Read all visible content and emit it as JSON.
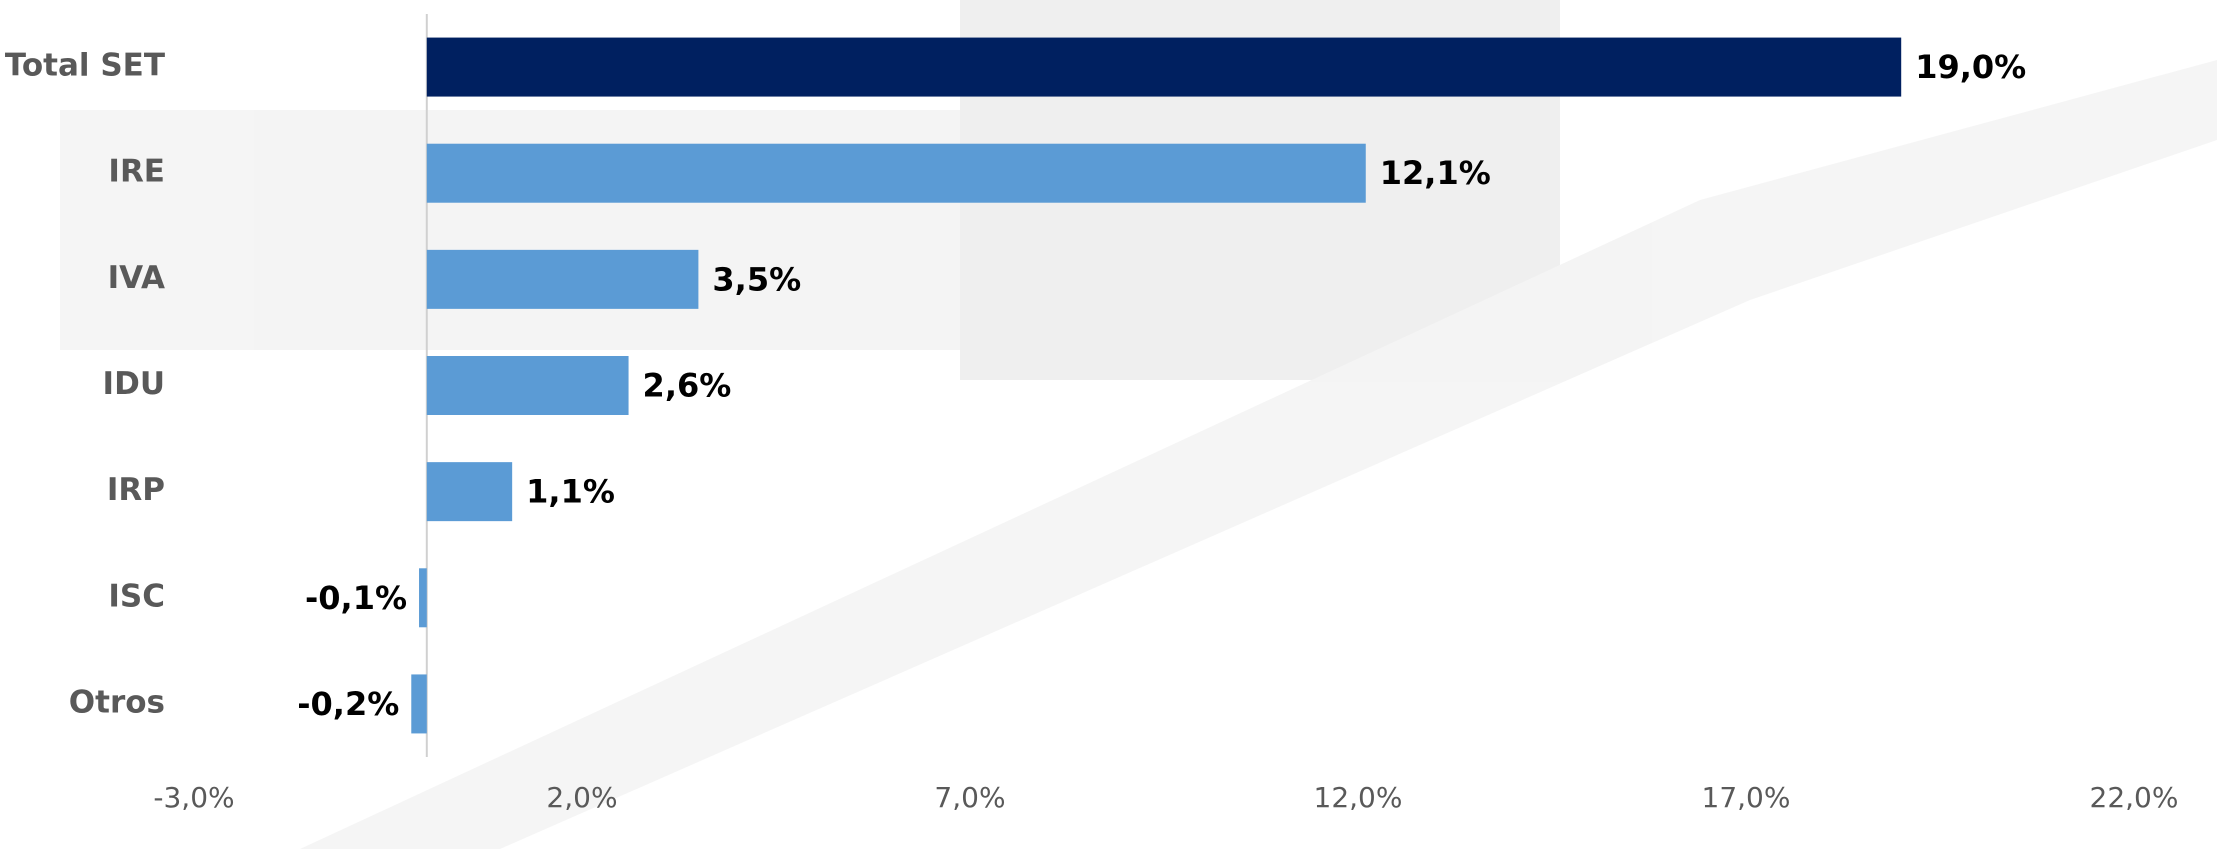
{
  "chart_data": {
    "type": "hbar",
    "categories": [
      "Total SET",
      "IRE",
      "IVA",
      "IDU",
      "IRP",
      "ISC",
      "Otros"
    ],
    "values": [
      19.0,
      12.1,
      3.5,
      2.6,
      1.1,
      -0.1,
      -0.2
    ],
    "value_labels": [
      "19,0%",
      "12,1%",
      "3,5%",
      "2,6%",
      "1,1%",
      "-0,1%",
      "-0,2%"
    ],
    "colors": [
      "#002060",
      "#5b9bd5",
      "#5b9bd5",
      "#5b9bd5",
      "#5b9bd5",
      "#5b9bd5",
      "#5b9bd5"
    ],
    "xlim": [
      -3,
      22
    ],
    "xticks": [
      {
        "value": -3,
        "label": "-3,0%"
      },
      {
        "value": 2,
        "label": "2,0%"
      },
      {
        "value": 7,
        "label": "7,0%"
      },
      {
        "value": 12,
        "label": "12,0%"
      },
      {
        "value": 17,
        "label": "17,0%"
      },
      {
        "value": 22,
        "label": "22,0%"
      }
    ]
  }
}
